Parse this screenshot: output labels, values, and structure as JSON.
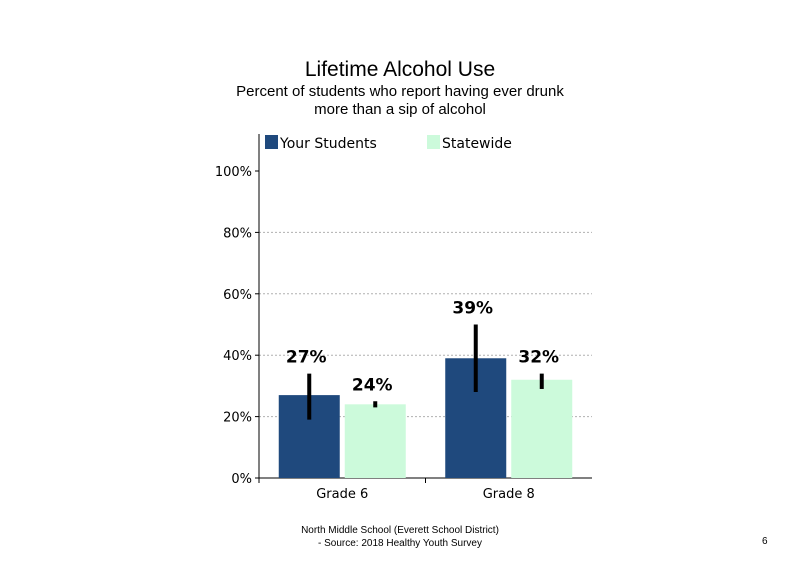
{
  "chart_data": {
    "type": "bar",
    "title": "Lifetime Alcohol Use",
    "subtitle_lines": [
      "Percent of students who report having ever drunk",
      "more than a sip of alcohol"
    ],
    "categories": [
      "Grade 6",
      "Grade 8"
    ],
    "series": [
      {
        "name": "Your Students",
        "color": "#1f497d",
        "values": [
          27,
          39
        ],
        "labels": [
          "27%",
          "39%"
        ],
        "error_low": [
          19,
          28
        ],
        "error_high": [
          34,
          50
        ]
      },
      {
        "name": "Statewide",
        "color": "#ccfadb",
        "values": [
          24,
          32
        ],
        "labels": [
          "24%",
          "32%"
        ],
        "error_low": [
          23,
          29
        ],
        "error_high": [
          25,
          34
        ]
      }
    ],
    "yticks": [
      "0%",
      "20%",
      "40%",
      "60%",
      "80%",
      "100%"
    ],
    "ylim": [
      0,
      110
    ],
    "grid": true,
    "legend": "top"
  },
  "footer": {
    "line1": "North Middle School (Everett School District)",
    "line2": "- Source: 2018 Healthy  Youth Survey"
  },
  "page_number": "6"
}
